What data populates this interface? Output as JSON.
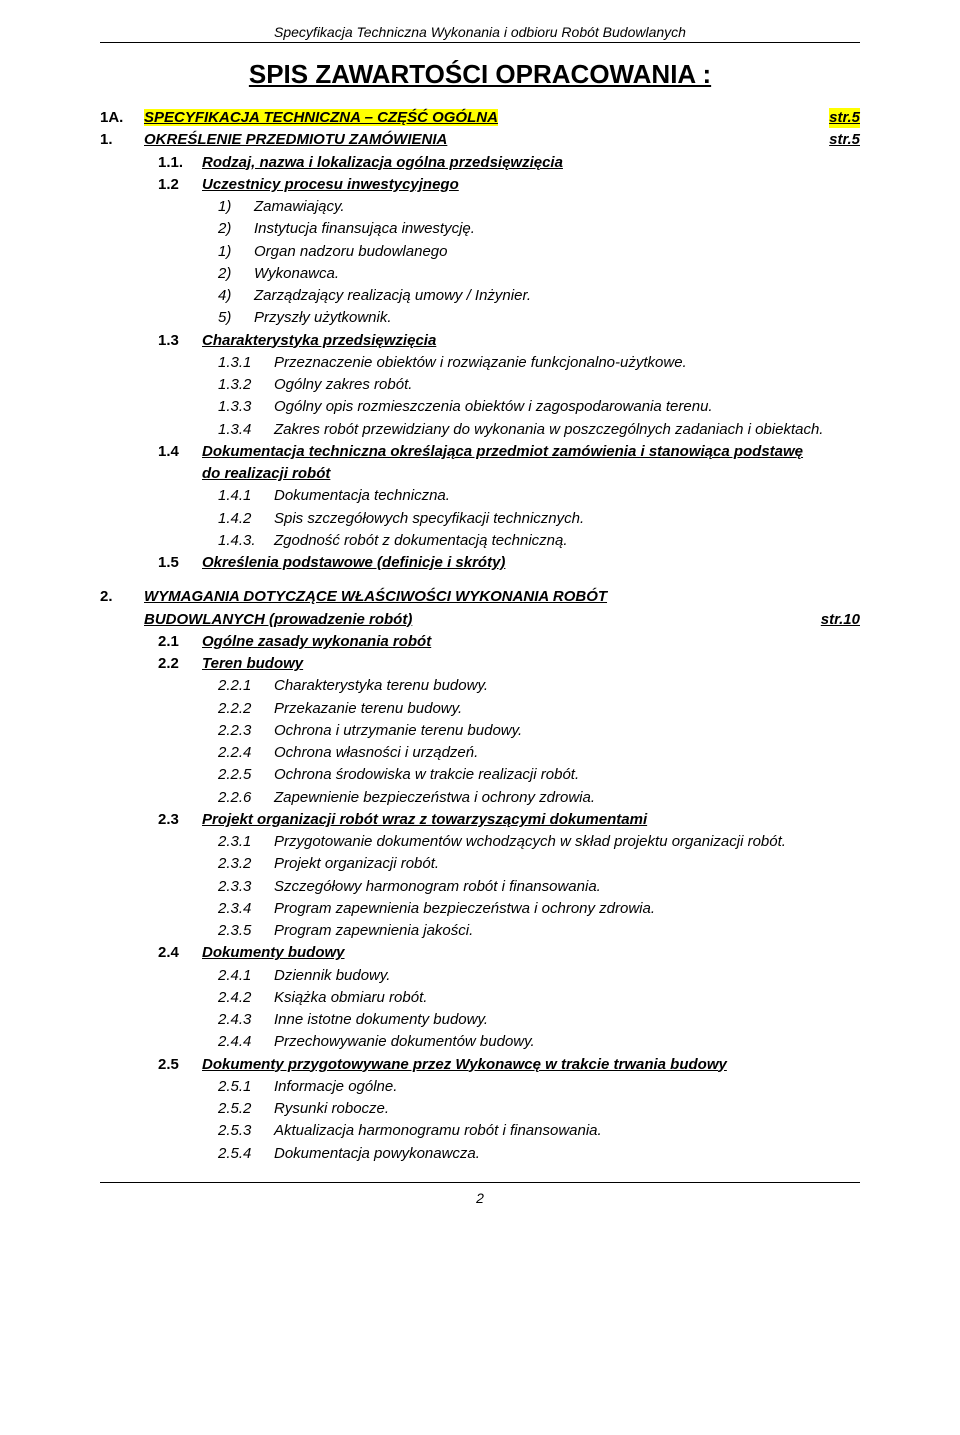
{
  "header": "Specyfikacja Techniczna Wykonania i odbioru Robót Budowlanych",
  "title": "SPIS ZAWARTOŚCI OPRACOWANIA :",
  "footer_page": "2",
  "colors": {
    "highlight": "#ffff00",
    "text": "#000000",
    "background": "#ffffff"
  },
  "s1A": {
    "num": "1A.",
    "label": "SPECYFIKACJA TECHNICZNA – CZĘŚĆ OGÓLNA",
    "page": "str.5"
  },
  "s1": {
    "num": "1.",
    "label": "OKREŚLENIE PRZEDMIOTU ZAMÓWIENIA",
    "page": "str.5"
  },
  "s1_1": {
    "num": "1.1.",
    "label": "Rodzaj, nazwa i lokalizacja ogólna przedsięwzięcia"
  },
  "s1_2": {
    "num": "1.2",
    "label": "Uczestnicy procesu inwestycyjnego",
    "items": {
      "a": {
        "n": "1)",
        "t": "Zamawiający."
      },
      "b": {
        "n": "2)",
        "t": "Instytucja finansująca inwestycję."
      },
      "c": {
        "n": "1)",
        "t": "Organ nadzoru budowlanego"
      },
      "d": {
        "n": "2)",
        "t": "Wykonawca."
      },
      "e": {
        "n": "4)",
        "t": "Zarządzający realizacją umowy / Inżynier."
      },
      "f": {
        "n": "5)",
        "t": "Przyszły użytkownik."
      }
    }
  },
  "s1_3": {
    "num": "1.3",
    "label": "Charakterystyka przedsięwzięcia",
    "items": {
      "a": {
        "n": "1.3.1",
        "t": "Przeznaczenie obiektów i rozwiązanie funkcjonalno-użytkowe."
      },
      "b": {
        "n": "1.3.2",
        "t": "Ogólny zakres robót."
      },
      "c": {
        "n": "1.3.3",
        "t": "Ogólny opis rozmieszczenia obiektów i zagospodarowania terenu."
      },
      "d": {
        "n": "1.3.4",
        "t": "Zakres robót przewidziany do wykonania w poszczególnych zadaniach i obiektach."
      }
    }
  },
  "s1_4": {
    "num": "1.4",
    "label_l1": "Dokumentacja techniczna określająca przedmiot zamówienia i stanowiąca podstawę",
    "label_l2": "do realizacji robót",
    "items": {
      "a": {
        "n": "1.4.1",
        "t": "Dokumentacja techniczna."
      },
      "b": {
        "n": "1.4.2",
        "t": "Spis szczegółowych specyfikacji technicznych."
      },
      "c": {
        "n": "1.4.3.",
        "t": "Zgodność robót z dokumentacją techniczną."
      }
    }
  },
  "s1_5": {
    "num": "1.5",
    "label": "Określenia podstawowe (definicje i skróty)"
  },
  "s2": {
    "num": "2.",
    "label_l1": "WYMAGANIA DOTYCZĄCE WŁAŚCIWOŚCI WYKONANIA ROBÓT",
    "label_l2": "BUDOWLANYCH (prowadzenie robót)",
    "page": "str.10"
  },
  "s2_1": {
    "num": "2.1",
    "label": "Ogólne zasady wykonania robót"
  },
  "s2_2": {
    "num": "2.2",
    "label": "Teren budowy",
    "items": {
      "a": {
        "n": "2.2.1",
        "t": "Charakterystyka terenu budowy."
      },
      "b": {
        "n": "2.2.2",
        "t": "Przekazanie terenu budowy."
      },
      "c": {
        "n": "2.2.3",
        "t": "Ochrona i utrzymanie terenu budowy."
      },
      "d": {
        "n": "2.2.4",
        "t": "Ochrona własności i urządzeń."
      },
      "e": {
        "n": "2.2.5",
        "t": "Ochrona środowiska w trakcie realizacji robót."
      },
      "f": {
        "n": "2.2.6",
        "t": "Zapewnienie bezpieczeństwa i ochrony zdrowia."
      }
    }
  },
  "s2_3": {
    "num": "2.3",
    "label": "Projekt organizacji robót wraz z towarzyszącymi dokumentami",
    "items": {
      "a": {
        "n": "2.3.1",
        "t": "Przygotowanie dokumentów wchodzących w skład projektu organizacji robót."
      },
      "b": {
        "n": "2.3.2",
        "t": "Projekt organizacji robót."
      },
      "c": {
        "n": "2.3.3",
        "t": "Szczegółowy harmonogram robót i finansowania."
      },
      "d": {
        "n": "2.3.4",
        "t": "Program zapewnienia bezpieczeństwa i ochrony zdrowia."
      },
      "e": {
        "n": "2.3.5",
        "t": "Program zapewnienia jakości."
      }
    }
  },
  "s2_4": {
    "num": "2.4",
    "label": "Dokumenty budowy",
    "items": {
      "a": {
        "n": "2.4.1",
        "t": "Dziennik budowy."
      },
      "b": {
        "n": "2.4.2",
        "t": "Książka obmiaru robót."
      },
      "c": {
        "n": "2.4.3",
        "t": "Inne istotne dokumenty budowy."
      },
      "d": {
        "n": "2.4.4",
        "t": "Przechowywanie dokumentów budowy."
      }
    }
  },
  "s2_5": {
    "num": "2.5",
    "label": "Dokumenty przygotowywane przez Wykonawcę w trakcie trwania budowy",
    "items": {
      "a": {
        "n": "2.5.1",
        "t": "Informacje ogólne."
      },
      "b": {
        "n": "2.5.2",
        "t": "Rysunki robocze."
      },
      "c": {
        "n": "2.5.3",
        "t": "Aktualizacja harmonogramu robót i finansowania."
      },
      "d": {
        "n": "2.5.4",
        "t": "Dokumentacja powykonawcza."
      }
    }
  }
}
